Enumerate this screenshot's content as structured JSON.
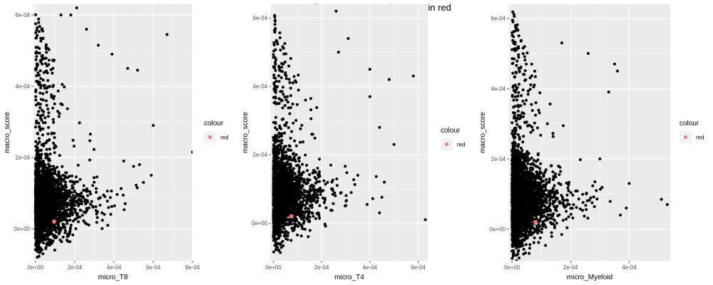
{
  "figure": {
    "title": "macro vs lineage score. Marker FIBP in red"
  },
  "colors": {
    "panel_bg": "#EBEBEB",
    "grid_major": "#FFFFFF",
    "point": "#000000",
    "marker": "#F8766D",
    "legend_key_bg": "#F2F2F2"
  },
  "chart_data": [
    {
      "type": "scatter",
      "xlabel": "micro_T8",
      "ylabel": "macro_score",
      "xlim": [
        -1e-05,
        0.0008
      ],
      "ylim": [
        -9e-05,
        0.00063
      ],
      "x_ticks": [
        0,
        0.0002,
        0.0004,
        0.0006,
        0.0008
      ],
      "x_tick_labels": [
        "0e+00",
        "2e-04",
        "4e-04",
        "6e-04",
        "8e-04"
      ],
      "y_ticks": [
        0,
        0.0002,
        0.0004,
        0.0006
      ],
      "y_tick_labels": [
        "0e+00",
        "2e-04",
        "4e-04",
        "6e-04"
      ],
      "grid": true,
      "legend": {
        "title": "colour",
        "label": "red",
        "placement": "right"
      },
      "highlight_point": {
        "label": "red",
        "x": 9.5e-05,
        "y": 2e-05
      },
      "outliers": [
        [
          0.0006,
          0.00029
        ],
        [
          0.0008,
          0.000215
        ],
        [
          0.00067,
          0.000545
        ],
        [
          0.00047,
          0.00045
        ],
        [
          0.00052,
          0.000445
        ],
        [
          0.00032,
          0.000515
        ],
        [
          0.00039,
          0.00049
        ],
        [
          0.00021,
          0.00062
        ],
        [
          0.00013,
          0.0006
        ],
        [
          0.00018,
          0.0006
        ],
        [
          0.00026,
          0.00056
        ],
        [
          0.00059,
          0.00015
        ],
        [
          0.00055,
          0.00013
        ],
        [
          0.0005,
          0.000175
        ],
        [
          0.00053,
          0.00018
        ],
        [
          0.00045,
          0.00019
        ]
      ],
      "cloud": {
        "n": 2600,
        "seed": 11,
        "x_scale": 7e-05,
        "x_max": 0.00058,
        "y_center": 7e-05,
        "y_spread": 0.00011,
        "y_min": -8e-05,
        "y_max": 0.00062
      }
    },
    {
      "type": "scatter",
      "xlabel": "micro_T4",
      "ylabel": "macro_score",
      "xlim": [
        -1e-05,
        0.00064
      ],
      "ylim": [
        -0.00011,
        0.00064
      ],
      "x_ticks": [
        0,
        0.0002,
        0.0004,
        0.0006
      ],
      "x_tick_labels": [
        "0e+00",
        "2e-04",
        "4e-04",
        "6e-04"
      ],
      "y_ticks": [
        0,
        0.0002,
        0.0004,
        0.0006
      ],
      "y_tick_labels": [
        "0e+00",
        "2e-04",
        "4e-04",
        "6e-04"
      ],
      "grid": true,
      "legend": {
        "title": "colour",
        "label": "red",
        "placement": "right"
      },
      "highlight_point": {
        "label": "red",
        "x": 7.5e-05,
        "y": 2e-05
      },
      "outliers": [
        [
          0.00063,
          1e-05
        ],
        [
          0.00058,
          0.00043
        ],
        [
          0.00048,
          0.00042
        ],
        [
          0.0005,
          0.00023
        ],
        [
          0.00044,
          0.00028
        ],
        [
          0.0004,
          0.00045
        ],
        [
          0.00031,
          0.00054
        ],
        [
          0.00027,
          0.0005
        ],
        [
          0.00026,
          0.00062
        ],
        [
          0.0004,
          0.00037
        ],
        [
          0.00046,
          0.00012
        ],
        [
          0.00044,
          3e-05
        ],
        [
          0.00035,
          0.00014
        ]
      ],
      "cloud": {
        "n": 2400,
        "seed": 23,
        "x_scale": 6e-05,
        "x_max": 0.00046,
        "y_center": 8e-05,
        "y_spread": 0.00012,
        "y_min": -0.0001,
        "y_max": 0.00062
      }
    },
    {
      "type": "scatter",
      "xlabel": "micro_Myeloid",
      "ylabel": "macro_score",
      "xlim": [
        -1e-05,
        0.00054
      ],
      "ylim": [
        -9e-05,
        0.00064
      ],
      "x_ticks": [
        0,
        0.0002,
        0.0004
      ],
      "x_tick_labels": [
        "0e+00",
        "2e-04",
        "4e-04"
      ],
      "y_ticks": [
        0,
        0.0002,
        0.0004,
        0.0006
      ],
      "y_tick_labels": [
        "0e+00",
        "2e-04",
        "4e-04",
        "6e-04"
      ],
      "grid": true,
      "legend": {
        "title": "colour",
        "label": "red",
        "placement": "right"
      },
      "highlight_point": {
        "label": "red",
        "x": 8e-05,
        "y": 2e-05
      },
      "outliers": [
        [
          0.00051,
          8.5e-05
        ],
        [
          0.00053,
          7e-05
        ],
        [
          0.0004,
          0.00013
        ],
        [
          0.00035,
          0.00047
        ],
        [
          0.00036,
          0.00045
        ],
        [
          0.00033,
          0.00039
        ],
        [
          0.0003,
          0.0002
        ],
        [
          0.00026,
          0.0005
        ],
        [
          0.00039,
          6e-05
        ],
        [
          0.00037,
          4e-05
        ],
        [
          0.00017,
          0.00053
        ]
      ],
      "cloud": {
        "n": 2600,
        "seed": 37,
        "x_scale": 5e-05,
        "x_max": 0.00036,
        "y_center": 8e-05,
        "y_spread": 0.00012,
        "y_min": -9e-05,
        "y_max": 0.00063
      }
    }
  ]
}
